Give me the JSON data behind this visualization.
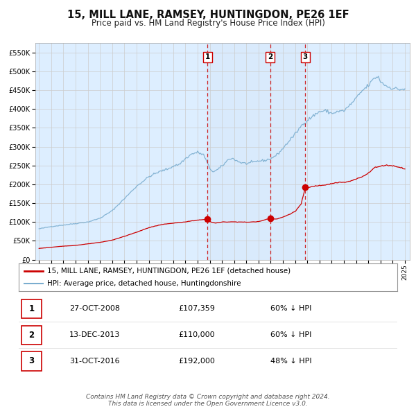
{
  "title": "15, MILL LANE, RAMSEY, HUNTINGDON, PE26 1EF",
  "subtitle": "Price paid vs. HM Land Registry's House Price Index (HPI)",
  "title_fontsize": 10.5,
  "subtitle_fontsize": 8.5,
  "xlim": [
    1994.7,
    2025.4
  ],
  "ylim": [
    0,
    575000
  ],
  "yticks": [
    0,
    50000,
    100000,
    150000,
    200000,
    250000,
    300000,
    350000,
    400000,
    450000,
    500000,
    550000
  ],
  "ytick_labels": [
    "£0",
    "£50K",
    "£100K",
    "£150K",
    "£200K",
    "£250K",
    "£300K",
    "£350K",
    "£400K",
    "£450K",
    "£500K",
    "£550K"
  ],
  "xticks": [
    1995,
    1996,
    1997,
    1998,
    1999,
    2000,
    2001,
    2002,
    2003,
    2004,
    2005,
    2006,
    2007,
    2008,
    2009,
    2010,
    2011,
    2012,
    2013,
    2014,
    2015,
    2016,
    2017,
    2018,
    2019,
    2020,
    2021,
    2022,
    2023,
    2024,
    2025
  ],
  "grid_color": "#cccccc",
  "plot_bg_color": "#ddeeff",
  "red_color": "#cc0000",
  "blue_color": "#7aadcf",
  "sale_dates": [
    2008.82,
    2013.95,
    2016.84
  ],
  "sale_prices": [
    107359,
    110000,
    192000
  ],
  "sale_labels": [
    "1",
    "2",
    "3"
  ],
  "vline_color": "#cc0000",
  "shade_start": 2008.82,
  "shade_end": 2016.84,
  "legend_entries": [
    "15, MILL LANE, RAMSEY, HUNTINGDON, PE26 1EF (detached house)",
    "HPI: Average price, detached house, Huntingdonshire"
  ],
  "table_data": [
    [
      "1",
      "27-OCT-2008",
      "£107,359",
      "60% ↓ HPI"
    ],
    [
      "2",
      "13-DEC-2013",
      "£110,000",
      "60% ↓ HPI"
    ],
    [
      "3",
      "31-OCT-2016",
      "£192,000",
      "48% ↓ HPI"
    ]
  ],
  "footer": "Contains HM Land Registry data © Crown copyright and database right 2024.\nThis data is licensed under the Open Government Licence v3.0.",
  "footer_fontsize": 6.5
}
